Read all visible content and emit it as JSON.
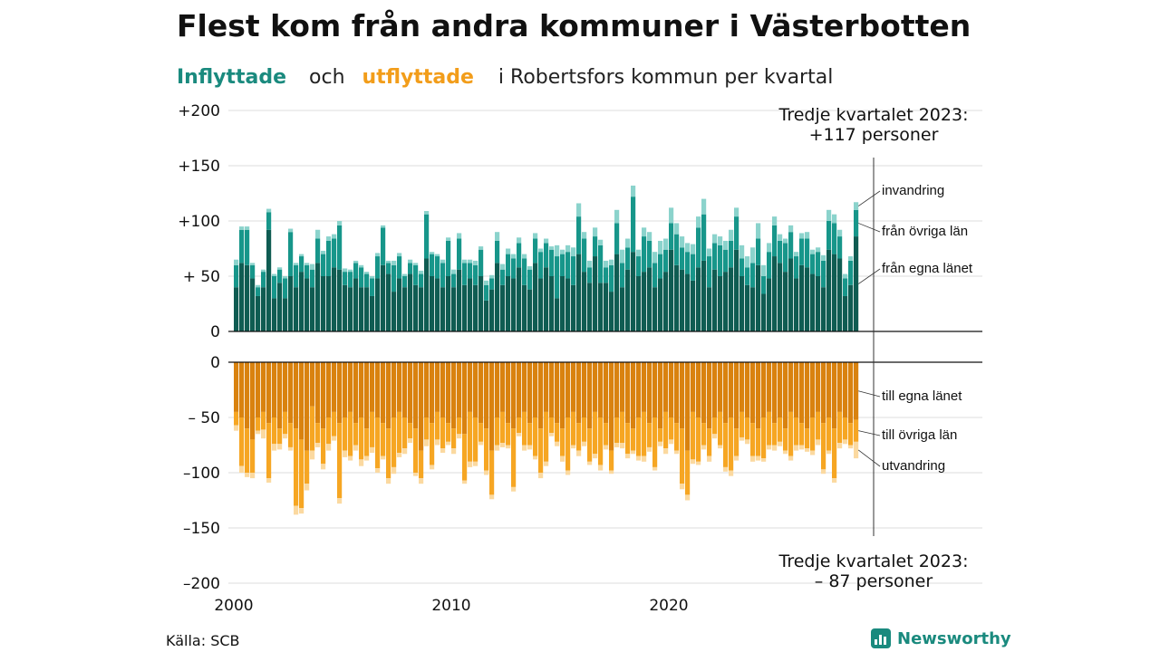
{
  "title": "Flest kom från andra kommuner i Västerbotten",
  "subtitle": {
    "in_word": "Inflyttade",
    "and_word": "och",
    "out_word": "utflyttade",
    "rest": "i Robertsfors  kommun  per  kvartal"
  },
  "source": "Källa: SCB",
  "brand": {
    "name": "Newsworthy",
    "color": "#1a8a7e"
  },
  "colors": {
    "in_own": "#0f5c52",
    "in_other": "#17968a",
    "in_intl": "#8bd3cc",
    "out_own": "#d9820f",
    "out_other": "#f6a623",
    "out_intl": "#fbd9a0",
    "in_title": "#1a8a7e",
    "out_title": "#f29d1a",
    "grid": "#dddddd",
    "axis": "#111111"
  },
  "annotations": {
    "top_line1": "Tredje kvartalet 2023:",
    "top_line2": "+117 personer",
    "bottom_line1": "Tredje kvartalet 2023:",
    "bottom_line2": "– 87 personer"
  },
  "chart_data": {
    "type": "bar",
    "stacked": true,
    "frequency": "quarterly",
    "start": "2000 Q1",
    "end": "2023 Q3",
    "xticks": [
      "2000",
      "2010",
      "2020"
    ],
    "grid": true,
    "panels": [
      {
        "name": "Inflyttade",
        "yticks": [
          "+200",
          "+150",
          "+100",
          "+ 50",
          "0"
        ],
        "ylim": [
          0,
          200
        ],
        "series": [
          {
            "name": "från egna länet",
            "values": [
              40,
              62,
              60,
              48,
              32,
              40,
              92,
              30,
              44,
              30,
              50,
              40,
              54,
              48,
              40,
              62,
              50,
              50,
              58,
              56,
              42,
              40,
              48,
              40,
              40,
              32,
              48,
              60,
              52,
              36,
              48,
              40,
              52,
              42,
              40,
              66,
              50,
              48,
              40,
              50,
              40,
              56,
              42,
              48,
              42,
              50,
              28,
              38,
              62,
              42,
              50,
              48,
              58,
              42,
              38,
              62,
              48,
              58,
              50,
              30,
              50,
              48,
              42,
              70,
              54,
              44,
              68,
              44,
              44,
              36,
              70,
              40,
              56,
              72,
              50,
              54,
              58,
              40,
              48,
              54,
              74,
              60,
              56,
              52,
              46,
              58,
              64,
              40,
              56,
              50,
              54,
              58,
              74,
              50,
              42,
              40,
              60,
              34,
              48,
              68,
              62,
              54,
              66,
              48,
              60,
              58,
              52,
              50,
              40,
              74,
              70,
              66,
              32,
              42,
              86
            ]
          },
          {
            "name": "från övriga län",
            "values": [
              20,
              30,
              32,
              12,
              8,
              14,
              16,
              20,
              12,
              18,
              40,
              20,
              14,
              12,
              16,
              22,
              20,
              32,
              26,
              40,
              12,
              14,
              14,
              18,
              12,
              16,
              20,
              34,
              10,
              24,
              20,
              10,
              10,
              18,
              12,
              40,
              20,
              20,
              22,
              32,
              12,
              28,
              20,
              14,
              18,
              24,
              14,
              10,
              20,
              14,
              20,
              18,
              22,
              24,
              18,
              22,
              24,
              22,
              24,
              38,
              20,
              24,
              26,
              34,
              30,
              14,
              18,
              34,
              14,
              24,
              28,
              22,
              20,
              50,
              18,
              32,
              24,
              22,
              22,
              20,
              24,
              28,
              20,
              20,
              24,
              36,
              42,
              28,
              24,
              28,
              20,
              24,
              30,
              16,
              16,
              22,
              24,
              16,
              24,
              28,
              20,
              26,
              24,
              20,
              24,
              26,
              18,
              22,
              24,
              26,
              28,
              20,
              16,
              22,
              24
            ]
          },
          {
            "name": "invandring",
            "values": [
              5,
              3,
              3,
              2,
              2,
              2,
              3,
              2,
              2,
              2,
              3,
              2,
              2,
              2,
              5,
              8,
              3,
              4,
              4,
              4,
              3,
              2,
              2,
              2,
              2,
              2,
              3,
              2,
              2,
              4,
              3,
              2,
              3,
              2,
              3,
              3,
              2,
              2,
              3,
              3,
              4,
              5,
              3,
              3,
              4,
              3,
              4,
              3,
              8,
              5,
              5,
              4,
              5,
              4,
              3,
              5,
              3,
              4,
              3,
              10,
              4,
              6,
              8,
              12,
              6,
              6,
              8,
              5,
              6,
              5,
              12,
              12,
              8,
              10,
              6,
              8,
              8,
              10,
              12,
              10,
              14,
              10,
              10,
              8,
              9,
              10,
              14,
              7,
              8,
              8,
              8,
              10,
              8,
              12,
              10,
              14,
              14,
              10,
              8,
              8,
              6,
              4,
              6,
              4,
              5,
              6,
              4,
              4,
              5,
              10,
              8,
              6,
              4,
              4,
              7
            ]
          }
        ]
      },
      {
        "name": "Utflyttade",
        "yticks": [
          "0",
          "– 50",
          "–100",
          "–150",
          "–200"
        ],
        "ylim": [
          -200,
          0
        ],
        "series": [
          {
            "name": "till egna länet",
            "values": [
              -45,
              -50,
              -60,
              -70,
              -50,
              -45,
              -55,
              -50,
              -60,
              -45,
              -55,
              -60,
              -70,
              -80,
              -40,
              -55,
              -60,
              -50,
              -45,
              -55,
              -50,
              -45,
              -55,
              -50,
              -60,
              -45,
              -50,
              -55,
              -60,
              -50,
              -45,
              -50,
              -55,
              -60,
              -80,
              -50,
              -55,
              -45,
              -50,
              -55,
              -60,
              -50,
              -65,
              -45,
              -50,
              -55,
              -60,
              -80,
              -50,
              -45,
              -55,
              -60,
              -50,
              -45,
              -55,
              -50,
              -60,
              -45,
              -50,
              -55,
              -60,
              -50,
              -45,
              -55,
              -50,
              -60,
              -45,
              -50,
              -55,
              -80,
              -50,
              -45,
              -55,
              -60,
              -50,
              -45,
              -55,
              -50,
              -60,
              -45,
              -50,
              -55,
              -60,
              -80,
              -45,
              -50,
              -55,
              -60,
              -50,
              -45,
              -55,
              -50,
              -60,
              -45,
              -50,
              -55,
              -60,
              -50,
              -45,
              -55,
              -50,
              -60,
              -45,
              -50,
              -55,
              -60,
              -50,
              -45,
              -55,
              -50,
              -60,
              -45,
              -50,
              -55,
              -52
            ]
          },
          {
            "name": "till övriga län",
            "values": [
              -12,
              -44,
              -40,
              -30,
              -12,
              -16,
              -50,
              -24,
              -14,
              -20,
              -22,
              -70,
              -62,
              -30,
              -40,
              -18,
              -32,
              -24,
              -22,
              -68,
              -30,
              -40,
              -20,
              -38,
              -25,
              -32,
              -46,
              -30,
              -45,
              -45,
              -37,
              -28,
              -14,
              -40,
              -25,
              -20,
              -38,
              -25,
              -28,
              -17,
              -18,
              -15,
              -42,
              -45,
              -40,
              -17,
              -38,
              -40,
              -25,
              -28,
              -20,
              -53,
              -14,
              -30,
              -20,
              -35,
              -40,
              -45,
              -14,
              -17,
              -25,
              -48,
              -30,
              -25,
              -22,
              -30,
              -38,
              -43,
              -20,
              -18,
              -23,
              -28,
              -28,
              -20,
              -35,
              -40,
              -22,
              -45,
              -12,
              -33,
              -20,
              -25,
              -50,
              -40,
              -43,
              -40,
              -20,
              -25,
              -15,
              -30,
              -40,
              -48,
              -25,
              -23,
              -20,
              -30,
              -25,
              -37,
              -30,
              -20,
              -22,
              -20,
              -40,
              -25,
              -20,
              -18,
              -30,
              -25,
              -42,
              -30,
              -45,
              -28,
              -20,
              -20,
              -20
            ]
          },
          {
            "name": "utvandring",
            "values": [
              -5,
              -6,
              -4,
              -5,
              -3,
              -8,
              -4,
              -6,
              -5,
              -4,
              -3,
              -8,
              -5,
              -6,
              -8,
              -4,
              -5,
              -6,
              -4,
              -5,
              -6,
              -4,
              -5,
              -6,
              -4,
              -5,
              -4,
              -3,
              -5,
              -6,
              -4,
              -5,
              -4,
              -3,
              -5,
              -6,
              -4,
              -5,
              -4,
              -3,
              -5,
              -4,
              -3,
              -5,
              -4,
              -3,
              -4,
              -4,
              -5,
              -4,
              -3,
              -4,
              -3,
              -5,
              -4,
              -3,
              -5,
              -4,
              -3,
              -4,
              -5,
              -4,
              -3,
              -5,
              -4,
              -3,
              -4,
              -5,
              -4,
              -3,
              -4,
              -5,
              -4,
              -3,
              -4,
              -5,
              -4,
              -3,
              -4,
              -5,
              -4,
              -3,
              -5,
              -5,
              -4,
              -3,
              -4,
              -5,
              -4,
              -3,
              -4,
              -5,
              -4,
              -3,
              -4,
              -5,
              -4,
              -3,
              -4,
              -5,
              -4,
              -3,
              -4,
              -5,
              -4,
              -3,
              -4,
              -5,
              -4,
              -3,
              -4,
              -5,
              -4,
              -3,
              -15
            ]
          }
        ]
      }
    ]
  }
}
